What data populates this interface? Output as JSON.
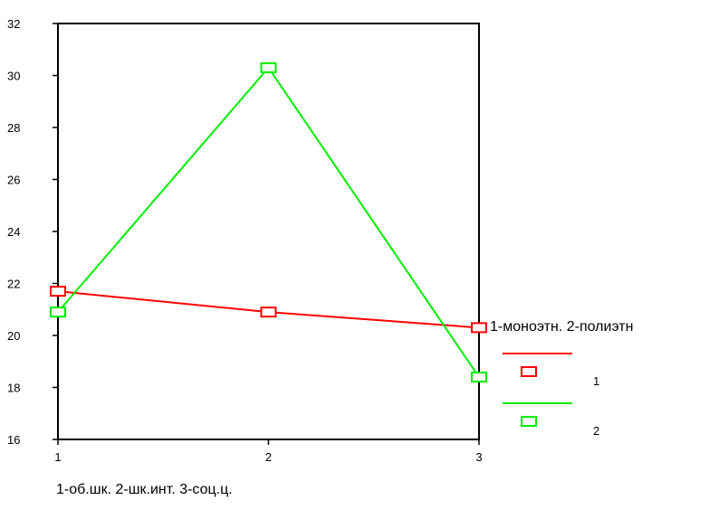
{
  "chart_data": {
    "type": "line",
    "x": [
      1,
      2,
      3
    ],
    "x_tick_labels": [
      "1",
      "2",
      "3"
    ],
    "y_tick_labels": [
      "16",
      "18",
      "20",
      "22",
      "24",
      "26",
      "28",
      "30",
      "32"
    ],
    "ylim": [
      16,
      32
    ],
    "xlabel": "1-об.шк. 2-шк.инт. 3-соц.ц.",
    "ylabel": "",
    "title": "",
    "grid": false,
    "legend": {
      "title": "1-моноэтн. 2-полиэтн",
      "position": "right"
    },
    "series": [
      {
        "name": "1",
        "color": "#ff0000",
        "marker": "open-square",
        "values": [
          21.7,
          20.9,
          20.3
        ]
      },
      {
        "name": "2",
        "color": "#00ee00",
        "marker": "open-square",
        "values": [
          20.9,
          30.3,
          18.4
        ]
      }
    ]
  }
}
